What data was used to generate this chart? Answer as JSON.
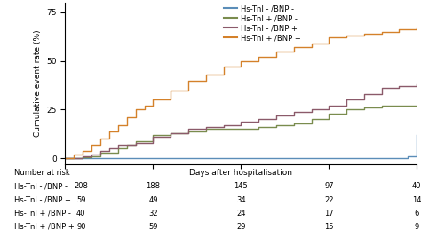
{
  "series": [
    {
      "label": "Hs-TnI - /BNP -",
      "color": "#5b8db8",
      "x": [
        0,
        1,
        1.5,
        2,
        3,
        4,
        5,
        6,
        7,
        8,
        9,
        10,
        11,
        12,
        13,
        14,
        15,
        16,
        17,
        18,
        19,
        19.5,
        20
      ],
      "y": [
        0,
        0,
        0,
        0,
        0,
        0,
        0,
        0,
        0,
        0,
        0,
        0,
        0,
        0,
        0,
        0,
        0,
        0,
        0,
        0,
        0,
        1,
        12
      ]
    },
    {
      "label": "Hs-TnI + /BNP -",
      "color": "#7a8c4e",
      "x": [
        0,
        1,
        1.5,
        2,
        3,
        3.5,
        4,
        5,
        6,
        7,
        8,
        9,
        10,
        11,
        12,
        13,
        14,
        15,
        16,
        17,
        18,
        19,
        20
      ],
      "y": [
        0,
        0.5,
        1,
        3,
        5,
        7,
        9,
        12,
        13,
        14,
        15,
        15,
        15,
        16,
        17,
        18,
        20,
        23,
        25,
        26,
        27,
        27,
        27
      ]
    },
    {
      "label": "Hs-TnI - /BNP +",
      "color": "#8b5a6a",
      "x": [
        0,
        1,
        1.5,
        2,
        2.5,
        3,
        4,
        5,
        6,
        7,
        8,
        9,
        10,
        11,
        12,
        13,
        14,
        15,
        16,
        17,
        18,
        19,
        20
      ],
      "y": [
        0,
        1,
        2,
        4,
        5,
        7,
        8,
        11,
        13,
        15,
        16,
        17,
        19,
        20,
        22,
        24,
        25,
        27,
        30,
        33,
        36,
        37,
        38
      ]
    },
    {
      "label": "Hs-TnI + /BNP +",
      "color": "#d4812a",
      "x": [
        0,
        0.5,
        1,
        1.5,
        2,
        2.5,
        3,
        3.5,
        4,
        4.5,
        5,
        6,
        7,
        8,
        9,
        10,
        11,
        12,
        13,
        14,
        15,
        16,
        17,
        18,
        19,
        20
      ],
      "y": [
        0,
        2,
        4,
        7,
        10,
        14,
        17,
        21,
        25,
        27,
        30,
        35,
        40,
        43,
        47,
        50,
        52,
        55,
        57,
        59,
        62,
        63,
        64,
        65,
        66,
        67
      ]
    }
  ],
  "xlabel": "Days after hospitalisation",
  "ylabel": "Cumulative event rate (%)",
  "xlim": [
    0,
    20
  ],
  "ylim": [
    -3,
    80
  ],
  "yticks": [
    0,
    25,
    50,
    75
  ],
  "xticks": [
    0,
    5,
    10,
    15,
    20
  ],
  "risk_table": {
    "header": "Number at risk",
    "rows": [
      {
        "label": "Hs-TnI - /BNP -",
        "values": [
          208,
          188,
          145,
          97,
          40
        ]
      },
      {
        "label": "Hs-TnI - /BNP +",
        "values": [
          59,
          49,
          34,
          22,
          14
        ]
      },
      {
        "label": "Hs-TnI + /BNP -",
        "values": [
          40,
          32,
          24,
          17,
          6
        ]
      },
      {
        "label": "Hs-TnI + /BNP +",
        "values": [
          90,
          59,
          29,
          15,
          9
        ]
      }
    ],
    "time_points": [
      0,
      5,
      10,
      15,
      20
    ]
  },
  "background_color": "#ffffff",
  "fontsize": 6.5
}
